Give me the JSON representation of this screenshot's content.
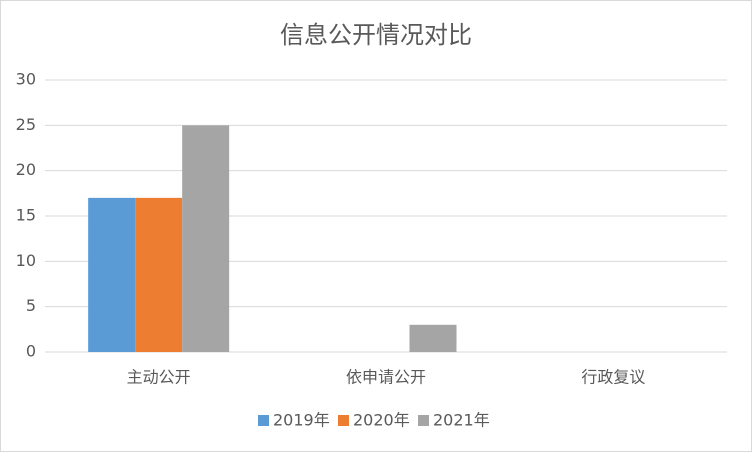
{
  "chart_data": {
    "type": "bar",
    "title": "信息公开情况对比",
    "categories": [
      "主动公开",
      "依申请公开",
      "行政复议"
    ],
    "series": [
      {
        "name": "2019年",
        "color": "#5b9bd5",
        "values": [
          17,
          0,
          0
        ]
      },
      {
        "name": "2020年",
        "color": "#ed7d31",
        "values": [
          17,
          0,
          0
        ]
      },
      {
        "name": "2021年",
        "color": "#a5a5a5",
        "values": [
          25,
          3,
          0
        ]
      }
    ],
    "ylim": [
      0,
      30
    ],
    "yticks": [
      0,
      5,
      10,
      15,
      20,
      25,
      30
    ],
    "grid": true,
    "legend": "bottom"
  }
}
